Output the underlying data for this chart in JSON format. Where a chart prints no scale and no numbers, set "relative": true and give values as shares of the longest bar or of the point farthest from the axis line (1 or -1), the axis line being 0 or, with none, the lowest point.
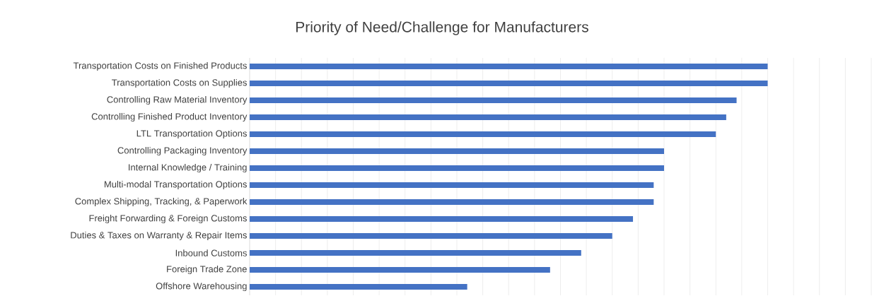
{
  "chart_data": {
    "type": "bar",
    "orientation": "horizontal",
    "relative": true,
    "title": "Priority of Need/Challenge for Manufacturers",
    "categories": [
      "Transportation Costs on Finished Products",
      "Transportation Costs on Supplies",
      "Controlling Raw Material Inventory",
      "Controlling Finished Product Inventory",
      "LTL Transportation Options",
      "Controlling Packaging Inventory",
      "Internal Knowledge / Training",
      "Multi-modal Transportation Options",
      "Complex Shipping, Tracking, & Paperwork",
      "Freight Forwarding & Foreign Customs",
      "Duties & Taxes on Warranty & Repair Items",
      "Inbound Customs",
      "Foreign Trade Zone",
      "Offshore Warehousing"
    ],
    "values": [
      1,
      1,
      0.94,
      0.92,
      0.9,
      0.8,
      0.8,
      0.78,
      0.78,
      0.74,
      0.7,
      0.64,
      0.58,
      0.42
    ],
    "color": "#4472c4",
    "grid": "x"
  }
}
